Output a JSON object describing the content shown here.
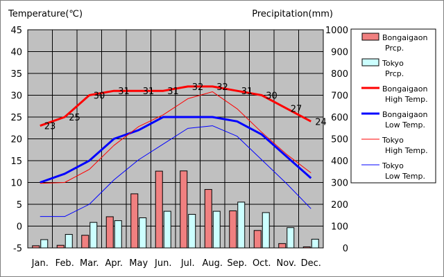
{
  "chart_data": {
    "type": "bar+line",
    "y_left_label": "Temperature(℃)",
    "y_right_label": "Precipitation(mm)",
    "y_left_range": [
      -5,
      45
    ],
    "y_left_ticks": [
      -5,
      0,
      5,
      10,
      15,
      20,
      25,
      30,
      35,
      40,
      45
    ],
    "y_right_range": [
      0,
      1000
    ],
    "y_right_ticks": [
      0,
      100,
      200,
      300,
      400,
      500,
      600,
      700,
      800,
      900,
      1000
    ],
    "categories": [
      "Jan.",
      "Feb.",
      "Mar.",
      "Apr.",
      "May",
      "Jun.",
      "Jul.",
      "Aug.",
      "Sep.",
      "Oct.",
      "Nov.",
      "Dec."
    ],
    "bar_series": [
      {
        "name": "Bongaigaon Prcp.",
        "color": "#f08080",
        "values": [
          10,
          12,
          58,
          143,
          248,
          352,
          353,
          268,
          170,
          80,
          20,
          5
        ]
      },
      {
        "name": "Tokyo Prcp.",
        "color": "#ccffff",
        "values": [
          38,
          62,
          117,
          125,
          138,
          168,
          154,
          168,
          210,
          162,
          93,
          40
        ]
      }
    ],
    "line_series": [
      {
        "name": "Bongaigaon High Temp.",
        "color": "#ff0000",
        "width": 3,
        "values": [
          23,
          25,
          30,
          31,
          31,
          31,
          32,
          32,
          31,
          30,
          27,
          24
        ],
        "labels": [
          "23",
          "25",
          "30",
          "31",
          "31",
          "31",
          "32",
          "32",
          "31",
          "30",
          "27",
          "24"
        ]
      },
      {
        "name": "Bongaigaon Low Temp.",
        "color": "#0000ff",
        "width": 3,
        "values": [
          10,
          12,
          15,
          20,
          22,
          25,
          25,
          25,
          24,
          21,
          16,
          11
        ]
      },
      {
        "name": "Tokyo High Temp.",
        "color": "#ff0000",
        "width": 1,
        "values": [
          9.8,
          10.0,
          13.0,
          18.5,
          22.8,
          25.5,
          29.2,
          30.8,
          26.9,
          21.5,
          16.5,
          12.2
        ]
      },
      {
        "name": "Tokyo Low Temp.",
        "color": "#0000ff",
        "width": 1,
        "values": [
          2.2,
          2.2,
          5.0,
          10.6,
          15.2,
          18.8,
          22.4,
          23.0,
          20.6,
          15.2,
          9.8,
          4.0
        ]
      }
    ],
    "legend": [
      {
        "type": "bar",
        "color": "#f08080",
        "line1": "Bongaigaon",
        "line2": "Prcp."
      },
      {
        "type": "bar",
        "color": "#ccffff",
        "line1": "Tokyo",
        "line2": "Prcp."
      },
      {
        "type": "line",
        "color": "#ff0000",
        "width": 3,
        "line1": "Bongaigaon",
        "line2": "High Temp."
      },
      {
        "type": "line",
        "color": "#0000ff",
        "width": 3,
        "line1": "Bongaigaon",
        "line2": "Low Temp."
      },
      {
        "type": "line",
        "color": "#ff0000",
        "width": 1,
        "line1": "Tokyo",
        "line2": "High Temp."
      },
      {
        "type": "line",
        "color": "#0000ff",
        "width": 1,
        "line1": "Tokyo",
        "line2": "Low Temp."
      }
    ]
  }
}
